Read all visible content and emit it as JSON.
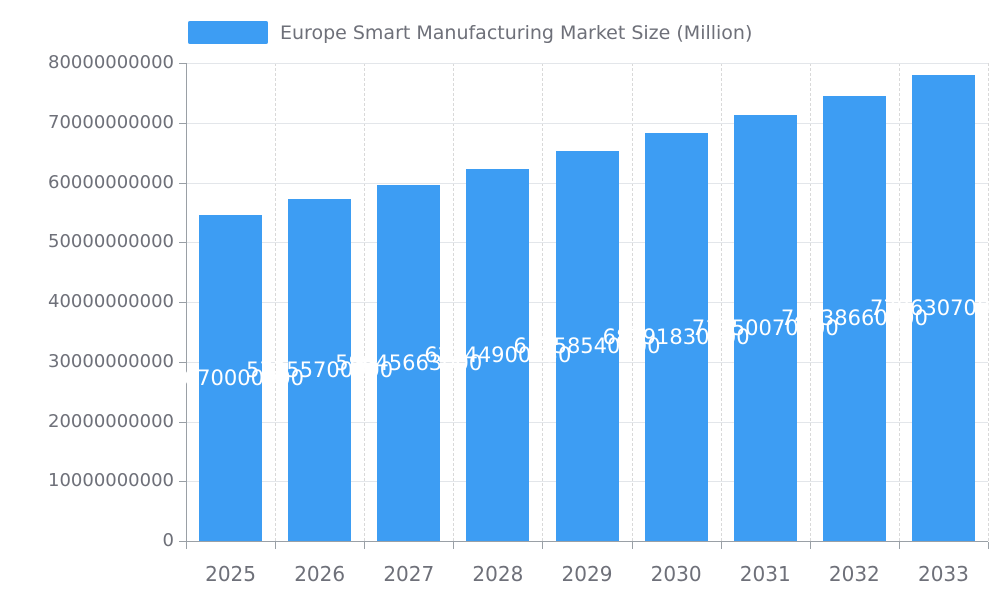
{
  "chart_data": {
    "type": "bar",
    "title": "Europe Smart Manufacturing Market Size (Million)",
    "categories": [
      "2025",
      "2026",
      "2027",
      "2028",
      "2029",
      "2030",
      "2031",
      "2032",
      "2033"
    ],
    "values": [
      54670000000,
      57355700000,
      59645663000,
      62344900250,
      65258540800,
      68391830600,
      71350070200,
      74538660000,
      77963070000
    ],
    "bar_labels": [
      "54670000000",
      "57355700000",
      "59645663000",
      "62344900250",
      "65258540800",
      "68391830600",
      "71350070200",
      "74538660000",
      "77963070000"
    ],
    "xlabel": "",
    "ylabel": "",
    "ylim": [
      0,
      80000000000
    ],
    "yticks": [
      "0",
      "10000000000",
      "20000000000",
      "30000000000",
      "40000000000",
      "50000000000",
      "60000000000",
      "70000000000",
      "80000000000"
    ],
    "grid": true,
    "legend_position": "top",
    "bar_color": "#3D9DF3",
    "bar_label_color": "#ffffff",
    "axis_text_color": "#6E7079"
  }
}
